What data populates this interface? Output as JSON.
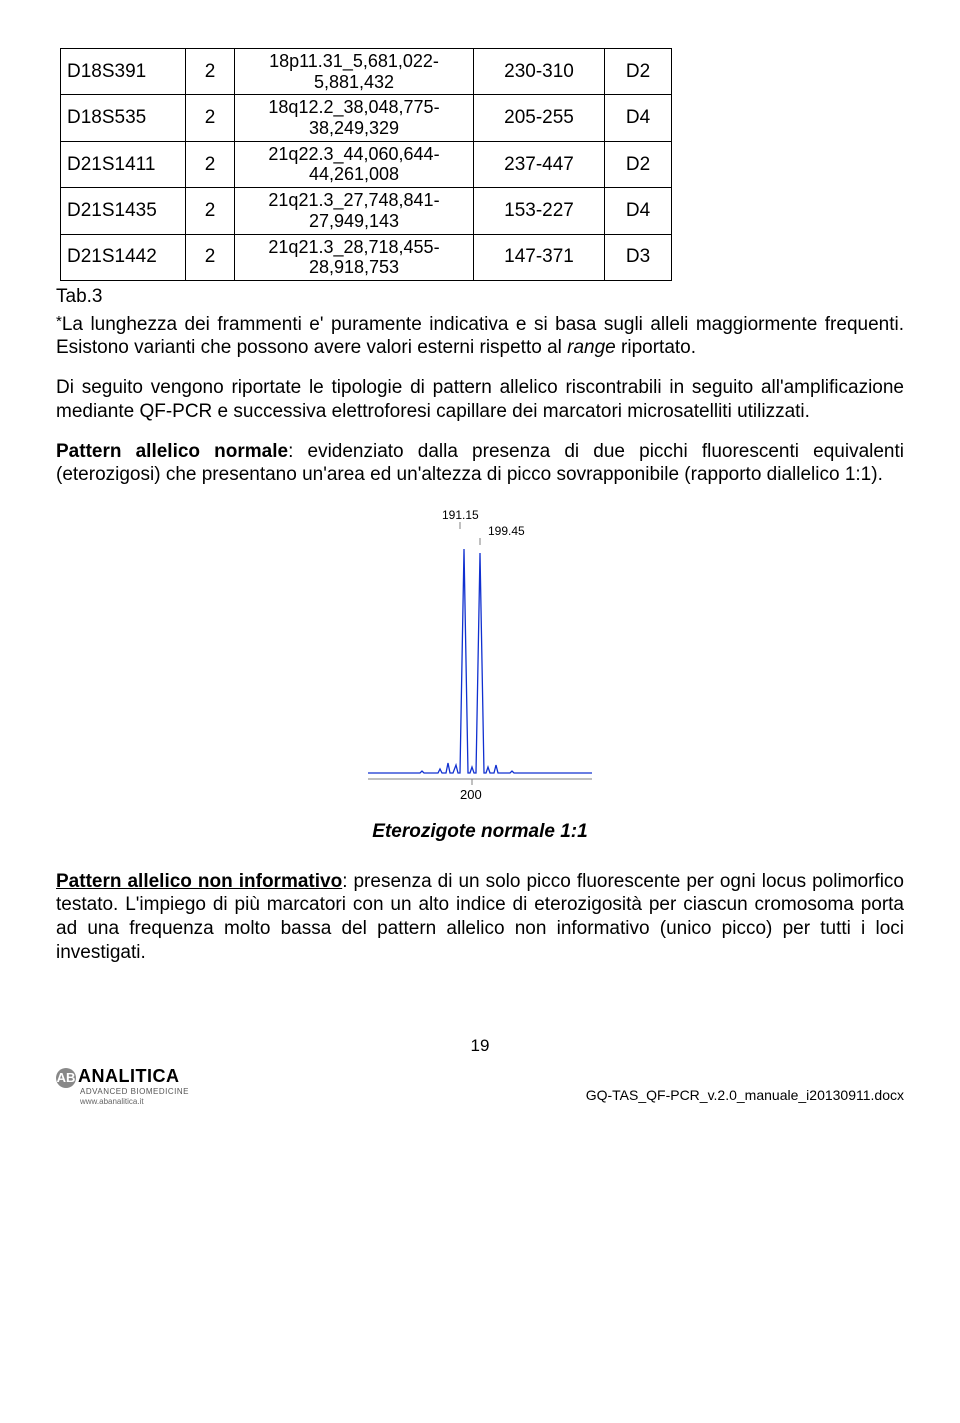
{
  "table": {
    "rows": [
      {
        "name": "D18S391",
        "n": "2",
        "loc_top": "18p11.31_5,681,022-",
        "loc_bot": "5,881,432",
        "range": "230-310",
        "dye": "D2"
      },
      {
        "name": "D18S535",
        "n": "2",
        "loc_top": "18q12.2_38,048,775-",
        "loc_bot": "38,249,329",
        "range": "205-255",
        "dye": "D4"
      },
      {
        "name": "D21S1411",
        "n": "2",
        "loc_top": "21q22.3_44,060,644-",
        "loc_bot": "44,261,008",
        "range": "237-447",
        "dye": "D2"
      },
      {
        "name": "D21S1435",
        "n": "2",
        "loc_top": "21q21.3_27,748,841-",
        "loc_bot": "27,949,143",
        "range": "153-227",
        "dye": "D4"
      },
      {
        "name": "D21S1442",
        "n": "2",
        "loc_top": "21q21.3_28,718,455-",
        "loc_bot": "28,918,753",
        "range": "147-371",
        "dye": "D3"
      }
    ],
    "label": "Tab.3"
  },
  "para1_pre": "*",
  "para1": "La lunghezza dei frammenti e' puramente indicativa e si basa sugli alleli maggiormente frequenti. Esistono varianti che possono avere valori esterni rispetto al ",
  "para1_it": "range",
  "para1_end": " riportato.",
  "para2": "Di seguito vengono riportate le tipologie di pattern allelico riscontrabili in seguito all'amplificazione mediante QF-PCR e successiva elettroforesi capillare dei marcatori microsatelliti utilizzati.",
  "para3_b": "Pattern allelico normale",
  "para3": ": evidenziato dalla presenza di due picchi fluorescenti equivalenti (eterozigosi) che presentano un'area ed un'altezza di picco sovrapponibile (rapporto diallelico 1:1).",
  "peak": {
    "label1": "191.15",
    "label2": "199.45",
    "axis": "200",
    "color": "#1030d0",
    "axis_color": "#808080"
  },
  "fig_caption": "Eterozigote normale 1:1",
  "para4_b": "Pattern allelico non informativo",
  "para4": ": presenza di un solo picco fluorescente per ogni locus polimorfico testato. L'impiego di più marcatori con un alto indice di eterozigosità per ciascun cromosoma porta ad una frequenza molto bassa del pattern allelico non informativo (unico picco) per tutti i loci investigati.",
  "footer": {
    "page": "19",
    "doc": "GQ-TAS_QF-PCR_v.2.0_manuale_i20130911.docx",
    "logo_main": "ANALITICA",
    "logo_ab": "AB",
    "logo_sub": "ADVANCED BIOMEDICINE",
    "logo_site": "www.abanalitica.it"
  }
}
